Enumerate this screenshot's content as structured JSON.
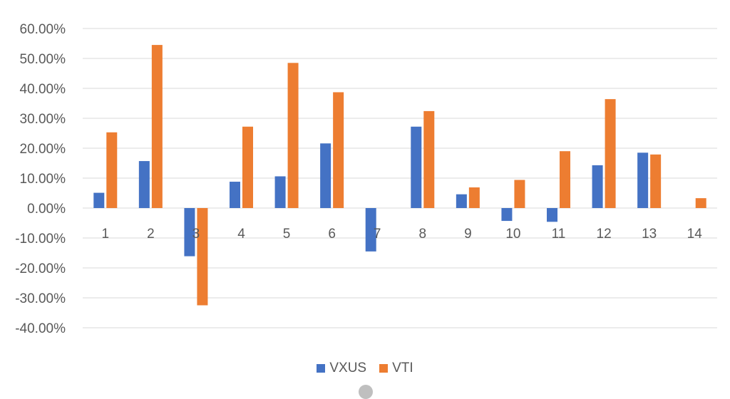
{
  "chart_data": {
    "type": "bar",
    "categories": [
      "1",
      "2",
      "3",
      "4",
      "5",
      "6",
      "7",
      "8",
      "9",
      "10",
      "11",
      "12",
      "13",
      "14"
    ],
    "series": [
      {
        "name": "VXUS",
        "color": "#4472C4",
        "values": [
          0.051,
          0.157,
          -0.161,
          0.088,
          0.106,
          0.216,
          -0.145,
          0.272,
          0.046,
          -0.043,
          -0.046,
          0.143,
          0.185,
          0.0
        ]
      },
      {
        "name": "VTI",
        "color": "#ED7D31",
        "values": [
          0.253,
          0.545,
          -0.325,
          0.272,
          0.485,
          0.387,
          0.0,
          0.324,
          0.069,
          0.094,
          0.19,
          0.364,
          0.179,
          0.033
        ]
      }
    ],
    "ylim": [
      -0.4,
      0.6
    ],
    "yticks": [
      0.6,
      0.5,
      0.4,
      0.3,
      0.2,
      0.1,
      0.0,
      -0.1,
      -0.2,
      -0.3,
      -0.4
    ],
    "ytick_labels": [
      "60.00%",
      "50.00%",
      "40.00%",
      "30.00%",
      "20.00%",
      "10.00%",
      "0.00%",
      "-10.00%",
      "-20.00%",
      "-30.00%",
      "-40.00%"
    ],
    "legend_position": "bottom",
    "grid": true
  }
}
